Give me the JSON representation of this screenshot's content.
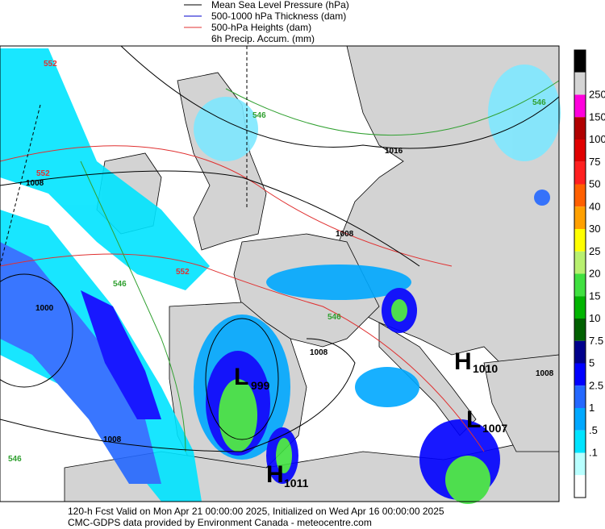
{
  "legend": [
    "Mean Sea Level Pressure (hPa)",
    "500-1000 hPa Thickness (dam)",
    "500-hPa Heights (dam)",
    "6h Precip. Accum. (mm)"
  ],
  "colorbar": {
    "labels": [
      "250",
      "150",
      "100",
      "75",
      "50",
      "40",
      "30",
      "25",
      "20",
      "15",
      "10",
      "7.5",
      "5",
      "2.5",
      "1",
      ".5",
      ".1"
    ],
    "colors": [
      "#000000",
      "#d4d4d4",
      "#ff00dd",
      "#b00000",
      "#e00000",
      "#ff2020",
      "#ff6000",
      "#ffa000",
      "#ffff00",
      "#b8f070",
      "#40e040",
      "#00b400",
      "#006000",
      "#00008c",
      "#0000ff",
      "#2468ff",
      "#00a8ff",
      "#00e4ff",
      "#b8ffff",
      "#ffffff"
    ]
  },
  "pressure_centers": [
    {
      "letter": "H",
      "value": "1010"
    },
    {
      "letter": "L",
      "value": "999"
    },
    {
      "letter": "L",
      "value": "1007"
    },
    {
      "letter": "H",
      "value": "1011"
    }
  ],
  "contour_labels": [
    "552",
    "546",
    "1008",
    "552",
    "546",
    "1016",
    "1008",
    "552",
    "1000",
    "546",
    "1008",
    "1008",
    "546",
    "1008",
    "546"
  ],
  "footer": [
    "120-h Fcst Valid on Mon Apr 21 00:00:00 2025, Initialized on Wed Apr 16 00:00:00 2025",
    "CMC-GDPS data provided by Environment Canada - meteocentre.com"
  ]
}
